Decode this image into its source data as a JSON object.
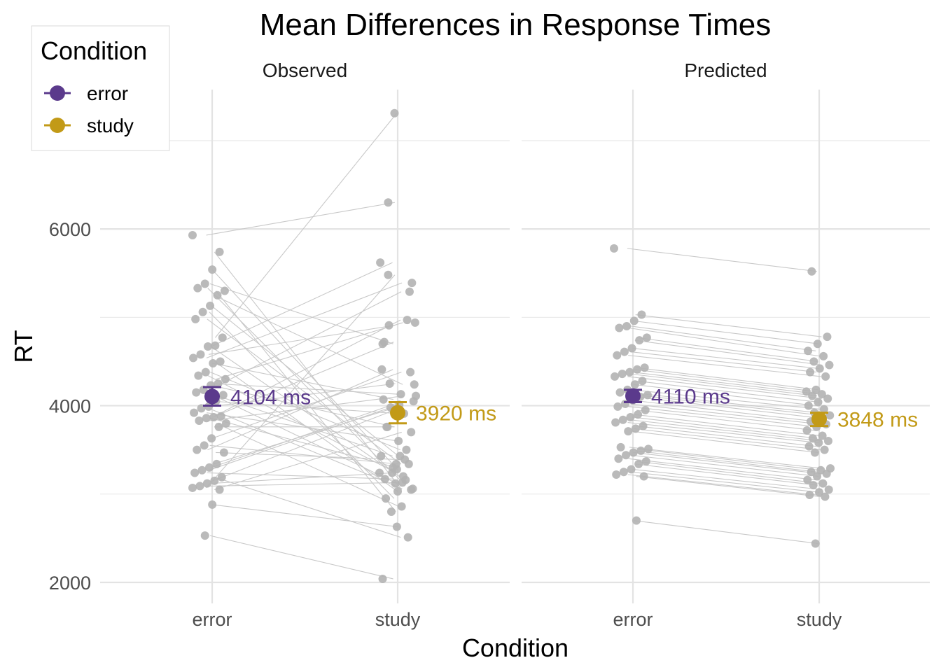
{
  "chart_data": {
    "type": "scatter",
    "title": "Mean Differences in Response Times",
    "xlabel": "Condition",
    "ylabel": "RT",
    "categories": [
      "error",
      "study"
    ],
    "ylim": [
      1800,
      7500
    ],
    "y_ticks": [
      2000,
      4000,
      6000
    ],
    "grid": true,
    "legend": {
      "title": "Condition",
      "position": "top-left",
      "entries": [
        {
          "label": "error",
          "color": "#5b3a8c"
        },
        {
          "label": "study",
          "color": "#c29a17"
        }
      ]
    },
    "point_color": "#b3b3b3",
    "line_color": "#c8c8c8",
    "facets": [
      {
        "name": "Observed",
        "means": [
          {
            "condition": "error",
            "value": 4104,
            "ci": [
              4000,
              4210
            ],
            "label": "4104 ms"
          },
          {
            "condition": "study",
            "value": 3920,
            "ci": [
              3800,
              4040
            ],
            "label": "3920 ms"
          }
        ],
        "pairs": [
          [
            5930,
            6300
          ],
          [
            5740,
            3050
          ],
          [
            5540,
            3280
          ],
          [
            5380,
            4700
          ],
          [
            5330,
            3160
          ],
          [
            5300,
            2800
          ],
          [
            5250,
            4240
          ],
          [
            5130,
            3430
          ],
          [
            5060,
            2950
          ],
          [
            4980,
            3340
          ],
          [
            4770,
            7310
          ],
          [
            4680,
            5620
          ],
          [
            4670,
            3200
          ],
          [
            4580,
            4910
          ],
          [
            4540,
            5390
          ],
          [
            4500,
            3030
          ],
          [
            4480,
            4070
          ],
          [
            4380,
            3500
          ],
          [
            4340,
            3240
          ],
          [
            4300,
            4940
          ],
          [
            4250,
            4130
          ],
          [
            4230,
            3760
          ],
          [
            4180,
            5290
          ],
          [
            4150,
            3120
          ],
          [
            4120,
            3430
          ],
          [
            4050,
            3910
          ],
          [
            3990,
            4250
          ],
          [
            3970,
            3060
          ],
          [
            3920,
            3600
          ],
          [
            3880,
            4720
          ],
          [
            3870,
            4970
          ],
          [
            3860,
            3300
          ],
          [
            3830,
            4110
          ],
          [
            3800,
            2860
          ],
          [
            3760,
            3760
          ],
          [
            3630,
            4380
          ],
          [
            3550,
            3340
          ],
          [
            3500,
            4410
          ],
          [
            3470,
            3390
          ],
          [
            3340,
            3980
          ],
          [
            3300,
            4050
          ],
          [
            3270,
            4010
          ],
          [
            3240,
            3170
          ],
          [
            3190,
            2510
          ],
          [
            3150,
            3960
          ],
          [
            3120,
            3240
          ],
          [
            3090,
            3130
          ],
          [
            3070,
            5480
          ],
          [
            3050,
            3700
          ],
          [
            2880,
            2630
          ],
          [
            2530,
            2040
          ]
        ]
      },
      {
        "name": "Predicted",
        "means": [
          {
            "condition": "error",
            "value": 4110,
            "ci": [
              4040,
              4180
            ],
            "label": "4110 ms"
          },
          {
            "condition": "study",
            "value": 3848,
            "ci": [
              3770,
              3920
            ],
            "label": "3848 ms"
          }
        ],
        "pairs": [
          [
            5780,
            5520
          ],
          [
            5030,
            4780
          ],
          [
            4960,
            4700
          ],
          [
            4900,
            4620
          ],
          [
            4880,
            4560
          ],
          [
            4770,
            4500
          ],
          [
            4740,
            4460
          ],
          [
            4650,
            4420
          ],
          [
            4610,
            4380
          ],
          [
            4570,
            4330
          ],
          [
            4430,
            4180
          ],
          [
            4410,
            4160
          ],
          [
            4380,
            4130
          ],
          [
            4360,
            4110
          ],
          [
            4330,
            4080
          ],
          [
            4280,
            4040
          ],
          [
            4240,
            4000
          ],
          [
            4180,
            3960
          ],
          [
            4150,
            3920
          ],
          [
            4120,
            3890
          ],
          [
            4100,
            3860
          ],
          [
            4060,
            3820
          ],
          [
            4020,
            3790
          ],
          [
            3990,
            3760
          ],
          [
            3950,
            3720
          ],
          [
            3900,
            3660
          ],
          [
            3870,
            3630
          ],
          [
            3840,
            3600
          ],
          [
            3810,
            3580
          ],
          [
            3770,
            3540
          ],
          [
            3740,
            3500
          ],
          [
            3710,
            3470
          ],
          [
            3530,
            3290
          ],
          [
            3510,
            3270
          ],
          [
            3490,
            3250
          ],
          [
            3470,
            3230
          ],
          [
            3440,
            3200
          ],
          [
            3400,
            3160
          ],
          [
            3370,
            3120
          ],
          [
            3340,
            3100
          ],
          [
            3280,
            3050
          ],
          [
            3250,
            3020
          ],
          [
            3220,
            2990
          ],
          [
            3200,
            2970
          ],
          [
            2700,
            2440
          ]
        ]
      }
    ]
  }
}
